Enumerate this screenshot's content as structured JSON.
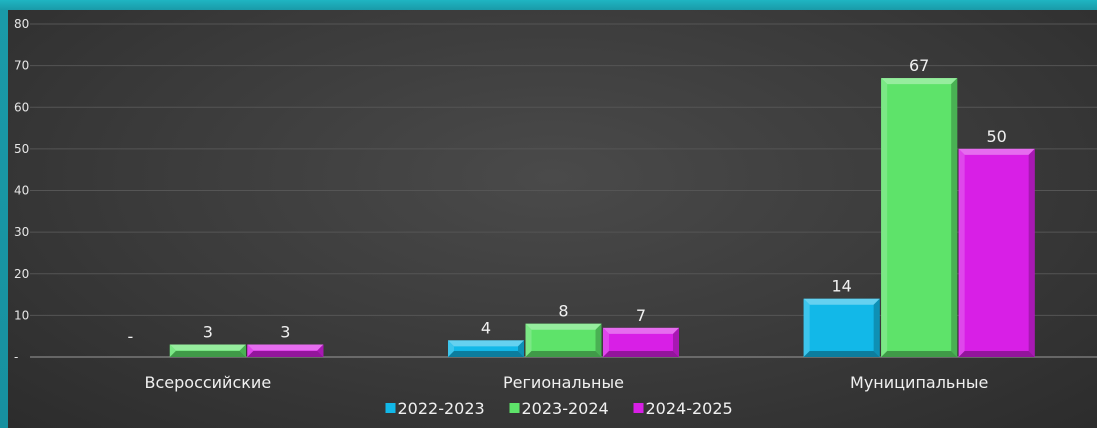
{
  "chart_data": {
    "type": "bar",
    "categories": [
      "Всероссийские",
      "Региональные",
      "Муниципальные"
    ],
    "series": [
      {
        "name": "2022-2023",
        "values": [
          0,
          4,
          14
        ],
        "labels": [
          "-",
          "4",
          "14"
        ],
        "color": "#12b8e8"
      },
      {
        "name": "2023-2024",
        "values": [
          3,
          8,
          67
        ],
        "labels": [
          "3",
          "8",
          "67"
        ],
        "color": "#5ee36a"
      },
      {
        "name": "2024-2025",
        "values": [
          3,
          7,
          50
        ],
        "labels": [
          "3",
          "7",
          "50"
        ],
        "color": "#d81fe6"
      }
    ],
    "yticks": [
      "-",
      "10",
      "20",
      "30",
      "40",
      "50",
      "60",
      "70",
      "80"
    ],
    "ylim": [
      0,
      80
    ],
    "grid": true,
    "legend_position": "bottom"
  }
}
